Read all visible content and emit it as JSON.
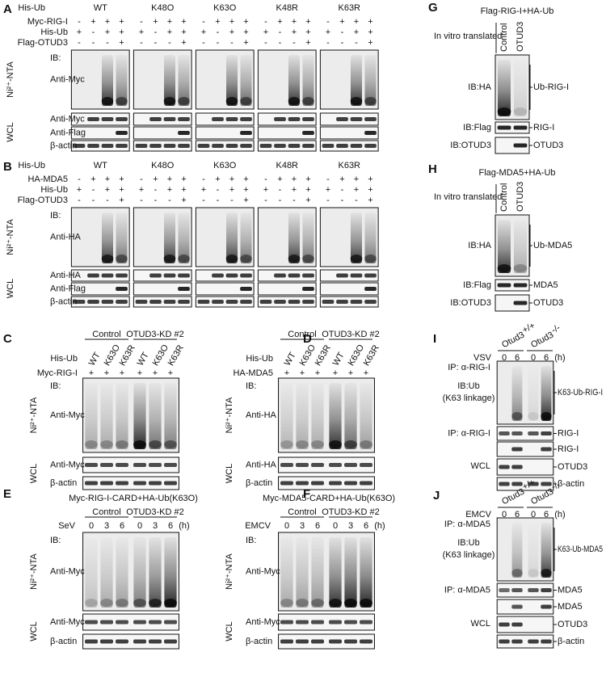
{
  "panels": [
    {
      "letter": "A",
      "header": "His-Ub",
      "groups": [
        "WT",
        "K48O",
        "K63O",
        "K48R",
        "K63R"
      ],
      "rows": [
        {
          "label": "Myc-RIG-I",
          "marks": [
            "-",
            "+",
            "+",
            "+",
            "-",
            "+",
            "+",
            "+",
            "-",
            "+",
            "+",
            "+",
            "-",
            "+",
            "+",
            "+",
            "-",
            "+",
            "+",
            "+"
          ]
        },
        {
          "label": "His-Ub",
          "marks": [
            "+",
            "-",
            "+",
            "+",
            "+",
            "-",
            "+",
            "+",
            "+",
            "-",
            "+",
            "+",
            "+",
            "-",
            "+",
            "+",
            "+",
            "-",
            "+",
            "+"
          ]
        },
        {
          "label": "Flag-OTUD3",
          "marks": [
            "-",
            "-",
            "-",
            "+",
            "-",
            "-",
            "-",
            "+",
            "-",
            "-",
            "-",
            "+",
            "-",
            "-",
            "-",
            "+",
            "-",
            "-",
            "-",
            "+"
          ]
        }
      ],
      "sections": [
        {
          "label": "Ni²⁺-NTA",
          "blots": [
            {
              "lines": [
                "IB:",
                "Anti-Myc"
              ]
            }
          ]
        },
        {
          "label": "WCL",
          "blots": [
            {
              "lines": [
                "Anti-Myc"
              ]
            },
            {
              "lines": [
                "Anti-Flag"
              ]
            },
            {
              "lines": [
                "β-actin"
              ]
            }
          ]
        }
      ]
    },
    {
      "letter": "B",
      "header": "His-Ub",
      "groups": [
        "WT",
        "K48O",
        "K63O",
        "K48R",
        "K63R"
      ],
      "rows": [
        {
          "label": "HA-MDA5",
          "marks": [
            "-",
            "+",
            "+",
            "+",
            "-",
            "+",
            "+",
            "+",
            "-",
            "+",
            "+",
            "+",
            "-",
            "+",
            "+",
            "+",
            "-",
            "+",
            "+",
            "+"
          ]
        },
        {
          "label": "His-Ub",
          "marks": [
            "+",
            "-",
            "+",
            "+",
            "+",
            "-",
            "+",
            "+",
            "+",
            "-",
            "+",
            "+",
            "+",
            "-",
            "+",
            "+",
            "+",
            "-",
            "+",
            "+"
          ]
        },
        {
          "label": "Flag-OTUD3",
          "marks": [
            "-",
            "-",
            "-",
            "+",
            "-",
            "-",
            "-",
            "+",
            "-",
            "-",
            "-",
            "+",
            "-",
            "-",
            "-",
            "+",
            "-",
            "-",
            "-",
            "+"
          ]
        }
      ],
      "sections": [
        {
          "label": "Ni²⁺-NTA",
          "blots": [
            {
              "lines": [
                "IB:",
                "Anti-HA"
              ]
            }
          ]
        },
        {
          "label": "WCL",
          "blots": [
            {
              "lines": [
                "Anti-HA"
              ]
            },
            {
              "lines": [
                "Anti-Flag"
              ]
            },
            {
              "lines": [
                "β-actin"
              ]
            }
          ]
        }
      ]
    },
    {
      "letter": "C",
      "groups": [
        "Control",
        "OTUD3-KD #2"
      ],
      "rows": [
        {
          "label": "His-Ub",
          "marks": [
            "WT",
            "K63O",
            "K63R",
            "WT",
            "K63O",
            "K63R"
          ]
        },
        {
          "label": "Myc-RIG-I",
          "marks": [
            "+",
            "+",
            "+",
            "+",
            "+",
            "+"
          ]
        }
      ],
      "sections": [
        {
          "label": "Ni²⁺-NTA",
          "blots": [
            {
              "lines": [
                "IB:",
                "Anti-Myc"
              ]
            }
          ]
        },
        {
          "label": "WCL",
          "blots": [
            {
              "lines": [
                "Anti-Myc"
              ]
            },
            {
              "lines": [
                "β-actin"
              ]
            }
          ]
        }
      ]
    },
    {
      "letter": "D",
      "groups": [
        "Control",
        "OTUD3-KD #2"
      ],
      "rows": [
        {
          "label": "His-Ub",
          "marks": [
            "WT",
            "K63O",
            "K63R",
            "WT",
            "K63O",
            "K63R"
          ]
        },
        {
          "label": "HA-MDA5",
          "marks": [
            "+",
            "+",
            "+",
            "+",
            "+",
            "+"
          ]
        }
      ],
      "sections": [
        {
          "label": "Ni²⁺-NTA",
          "blots": [
            {
              "lines": [
                "IB:",
                "Anti-HA"
              ]
            }
          ]
        },
        {
          "label": "WCL",
          "blots": [
            {
              "lines": [
                "Anti-HA"
              ]
            },
            {
              "lines": [
                "β-actin"
              ]
            }
          ]
        }
      ]
    },
    {
      "letter": "E",
      "title": "Myc-RIG-I-CARD+HA-Ub(K63O)",
      "groups": [
        "Control",
        "OTUD3-KD #2"
      ],
      "rows": [
        {
          "label": "SeV",
          "marks": [
            "0",
            "3",
            "6",
            "0",
            "3",
            "6"
          ],
          "unit": "(h)"
        }
      ],
      "sections": [
        {
          "label": "Ni²⁺-NTA",
          "blots": [
            {
              "lines": [
                "IB:",
                "Anti-Myc"
              ]
            }
          ]
        },
        {
          "label": "WCL",
          "blots": [
            {
              "lines": [
                "Anti-Myc"
              ]
            },
            {
              "lines": [
                "β-actin"
              ]
            }
          ]
        }
      ]
    },
    {
      "letter": "F",
      "title": "Myc-MDA5-CARD+HA-Ub(K63O)",
      "groups": [
        "Control",
        "OTUD3-KD #2"
      ],
      "rows": [
        {
          "label": "EMCV",
          "marks": [
            "0",
            "3",
            "6",
            "0",
            "3",
            "6"
          ],
          "unit": "(h)"
        }
      ],
      "sections": [
        {
          "label": "Ni²⁺-NTA",
          "blots": [
            {
              "lines": [
                "IB:",
                "Anti-Myc"
              ]
            }
          ]
        },
        {
          "label": "WCL",
          "blots": [
            {
              "lines": [
                "Anti-Myc"
              ]
            },
            {
              "lines": [
                "β-actin"
              ]
            }
          ]
        }
      ]
    },
    {
      "letter": "G",
      "title": "Flag-RIG-I+HA-Ub",
      "rows": [
        {
          "label": "In vitro translated",
          "marks": [
            "Control",
            "OTUD3"
          ]
        }
      ],
      "sections": [
        {
          "blots": [
            {
              "lines": [
                "IB:HA"
              ],
              "right": "Ub-RIG-I"
            },
            {
              "lines": [
                "IB:Flag"
              ],
              "right": "RIG-I"
            },
            {
              "lines": [
                "IB:OTUD3"
              ],
              "right": "OTUD3"
            }
          ]
        }
      ]
    },
    {
      "letter": "H",
      "title": "Flag-MDA5+HA-Ub",
      "rows": [
        {
          "label": "In vitro translated",
          "marks": [
            "Control",
            "OTUD3"
          ]
        }
      ],
      "sections": [
        {
          "blots": [
            {
              "lines": [
                "IB:HA"
              ],
              "right": "Ub-MDA5"
            },
            {
              "lines": [
                "IB:Flag"
              ],
              "right": "MDA5"
            },
            {
              "lines": [
                "IB:OTUD3"
              ],
              "right": "OTUD3"
            }
          ]
        }
      ]
    },
    {
      "letter": "I",
      "groups": [
        {
          "base": "Otud3",
          "sup": "+/+"
        },
        {
          "base": "Otud3",
          "sup": "-/-"
        }
      ],
      "rows": [
        {
          "label": "VSV",
          "marks": [
            "0",
            "6",
            "0",
            "6"
          ],
          "unit": "(h)"
        }
      ],
      "sections": [
        {
          "label": "IP: α-RIG-I",
          "blots": [
            {
              "lines": [
                "IB:Ub",
                "(K63 linkage)"
              ],
              "right": "K63-Ub-RIG-I"
            }
          ]
        },
        {
          "label": "IP: α-RIG-I",
          "blots": [
            {
              "right": "RIG-I"
            }
          ]
        },
        {
          "label": "WCL",
          "blots": [
            {
              "right": "RIG-I"
            },
            {
              "right": "OTUD3"
            },
            {
              "right": "β-actin"
            }
          ]
        }
      ]
    },
    {
      "letter": "J",
      "groups": [
        {
          "base": "Otud3",
          "sup": "+/+"
        },
        {
          "base": "Otud3",
          "sup": "-/-"
        }
      ],
      "rows": [
        {
          "label": "EMCV",
          "marks": [
            "0",
            "6",
            "0",
            "6"
          ],
          "unit": "(h)"
        }
      ],
      "sections": [
        {
          "label": "IP: α-MDA5",
          "blots": [
            {
              "lines": [
                "IB:Ub",
                "(K63 linkage)"
              ],
              "right": "K63-Ub-MDA5"
            }
          ]
        },
        {
          "label": "IP: α-MDA5",
          "blots": [
            {
              "right": "MDA5"
            }
          ]
        },
        {
          "label": "WCL",
          "blots": [
            {
              "right": "MDA5"
            },
            {
              "right": "OTUD3"
            },
            {
              "right": "β-actin"
            }
          ]
        }
      ]
    }
  ]
}
